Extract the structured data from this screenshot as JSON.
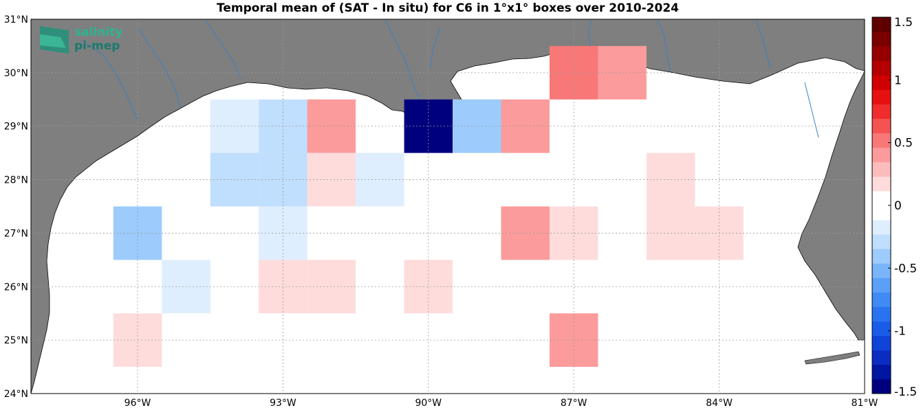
{
  "title": "Temporal mean of (SAT - In situ) for C6 in 1°x1° boxes over 2010-2024",
  "logo": {
    "line1": "salinity",
    "line2": "pi-mep"
  },
  "colors": {
    "land": "#7f7f7f",
    "ocean": "#ffffff",
    "rivers": "#3b7fc4",
    "grid": "#b0b0b0"
  },
  "map": {
    "lon_range": [
      -98.2,
      -81.0
    ],
    "lat_range": [
      24.0,
      31.0
    ],
    "x_ticks": [
      {
        "value": -96,
        "label": "96°W"
      },
      {
        "value": -93,
        "label": "93°W"
      },
      {
        "value": -90,
        "label": "90°W"
      },
      {
        "value": -87,
        "label": "87°W"
      },
      {
        "value": -84,
        "label": "84°W"
      },
      {
        "value": -81,
        "label": "81°W"
      }
    ],
    "y_ticks": [
      {
        "value": 31,
        "label": "31°N"
      },
      {
        "value": 30,
        "label": "30°N"
      },
      {
        "value": 29,
        "label": "29°N"
      },
      {
        "value": 28,
        "label": "28°N"
      },
      {
        "value": 27,
        "label": "27°N"
      },
      {
        "value": 26,
        "label": "26°N"
      },
      {
        "value": 25,
        "label": "25°N"
      },
      {
        "value": 24,
        "label": "24°N"
      }
    ],
    "grid": true
  },
  "chart_data": {
    "type": "heatmap",
    "title": "Temporal mean of (SAT - In situ) for C6 in 1°x1° boxes over 2010-2024",
    "cell_size_deg": 1,
    "cells": [
      {
        "lon": -87,
        "lat": 30,
        "value": 0.55
      },
      {
        "lon": -86,
        "lat": 30,
        "value": 0.35
      },
      {
        "lon": -94,
        "lat": 29,
        "value": -0.15
      },
      {
        "lon": -93,
        "lat": 29,
        "value": -0.25
      },
      {
        "lon": -92,
        "lat": 29,
        "value": 0.4
      },
      {
        "lon": -90,
        "lat": 29,
        "value": -1.4
      },
      {
        "lon": -89,
        "lat": 29,
        "value": -0.45
      },
      {
        "lon": -88,
        "lat": 29,
        "value": 0.35
      },
      {
        "lon": -94,
        "lat": 28,
        "value": -0.25
      },
      {
        "lon": -93,
        "lat": 28,
        "value": -0.25
      },
      {
        "lon": -92,
        "lat": 28,
        "value": 0.15
      },
      {
        "lon": -91,
        "lat": 28,
        "value": -0.15
      },
      {
        "lon": -85,
        "lat": 28,
        "value": 0.15
      },
      {
        "lon": -96,
        "lat": 27,
        "value": -0.45
      },
      {
        "lon": -93,
        "lat": 27,
        "value": -0.15
      },
      {
        "lon": -88,
        "lat": 27,
        "value": 0.4
      },
      {
        "lon": -87,
        "lat": 27,
        "value": 0.15
      },
      {
        "lon": -85,
        "lat": 27,
        "value": 0.15
      },
      {
        "lon": -84,
        "lat": 27,
        "value": 0.15
      },
      {
        "lon": -95,
        "lat": 26,
        "value": -0.15
      },
      {
        "lon": -93,
        "lat": 26,
        "value": 0.15
      },
      {
        "lon": -92,
        "lat": 26,
        "value": 0.15
      },
      {
        "lon": -90,
        "lat": 26,
        "value": 0.15
      },
      {
        "lon": -96,
        "lat": 25,
        "value": 0.15
      },
      {
        "lon": -87,
        "lat": 25,
        "value": 0.4
      }
    ],
    "colorbar": {
      "range": [
        -1.5,
        1.5
      ],
      "ticks": [
        {
          "value": 1.5,
          "label": "1.5"
        },
        {
          "value": 1,
          "label": "1"
        },
        {
          "value": 0.5,
          "label": "0.5"
        },
        {
          "value": 0,
          "label": "0"
        },
        {
          "value": -0.5,
          "label": "-0.5"
        },
        {
          "value": -1,
          "label": "-1"
        },
        {
          "value": -1.5,
          "label": "-1.5"
        }
      ],
      "colors": [
        "#00007e",
        "#0015a0",
        "#0a2cc0",
        "#1044d8",
        "#1a5ce8",
        "#2a73f0",
        "#3f8af5",
        "#5aa0f8",
        "#7ab5fa",
        "#9ccbfc",
        "#c0defd",
        "#dfeefe",
        "#ffffff",
        "#ffffff",
        "#fedcdc",
        "#fdbcbc",
        "#fb9b9b",
        "#f87878",
        "#f55252",
        "#f02d2d",
        "#e61010",
        "#d00000",
        "#b40000",
        "#960000",
        "#7a0000",
        "#5e0000"
      ]
    }
  }
}
